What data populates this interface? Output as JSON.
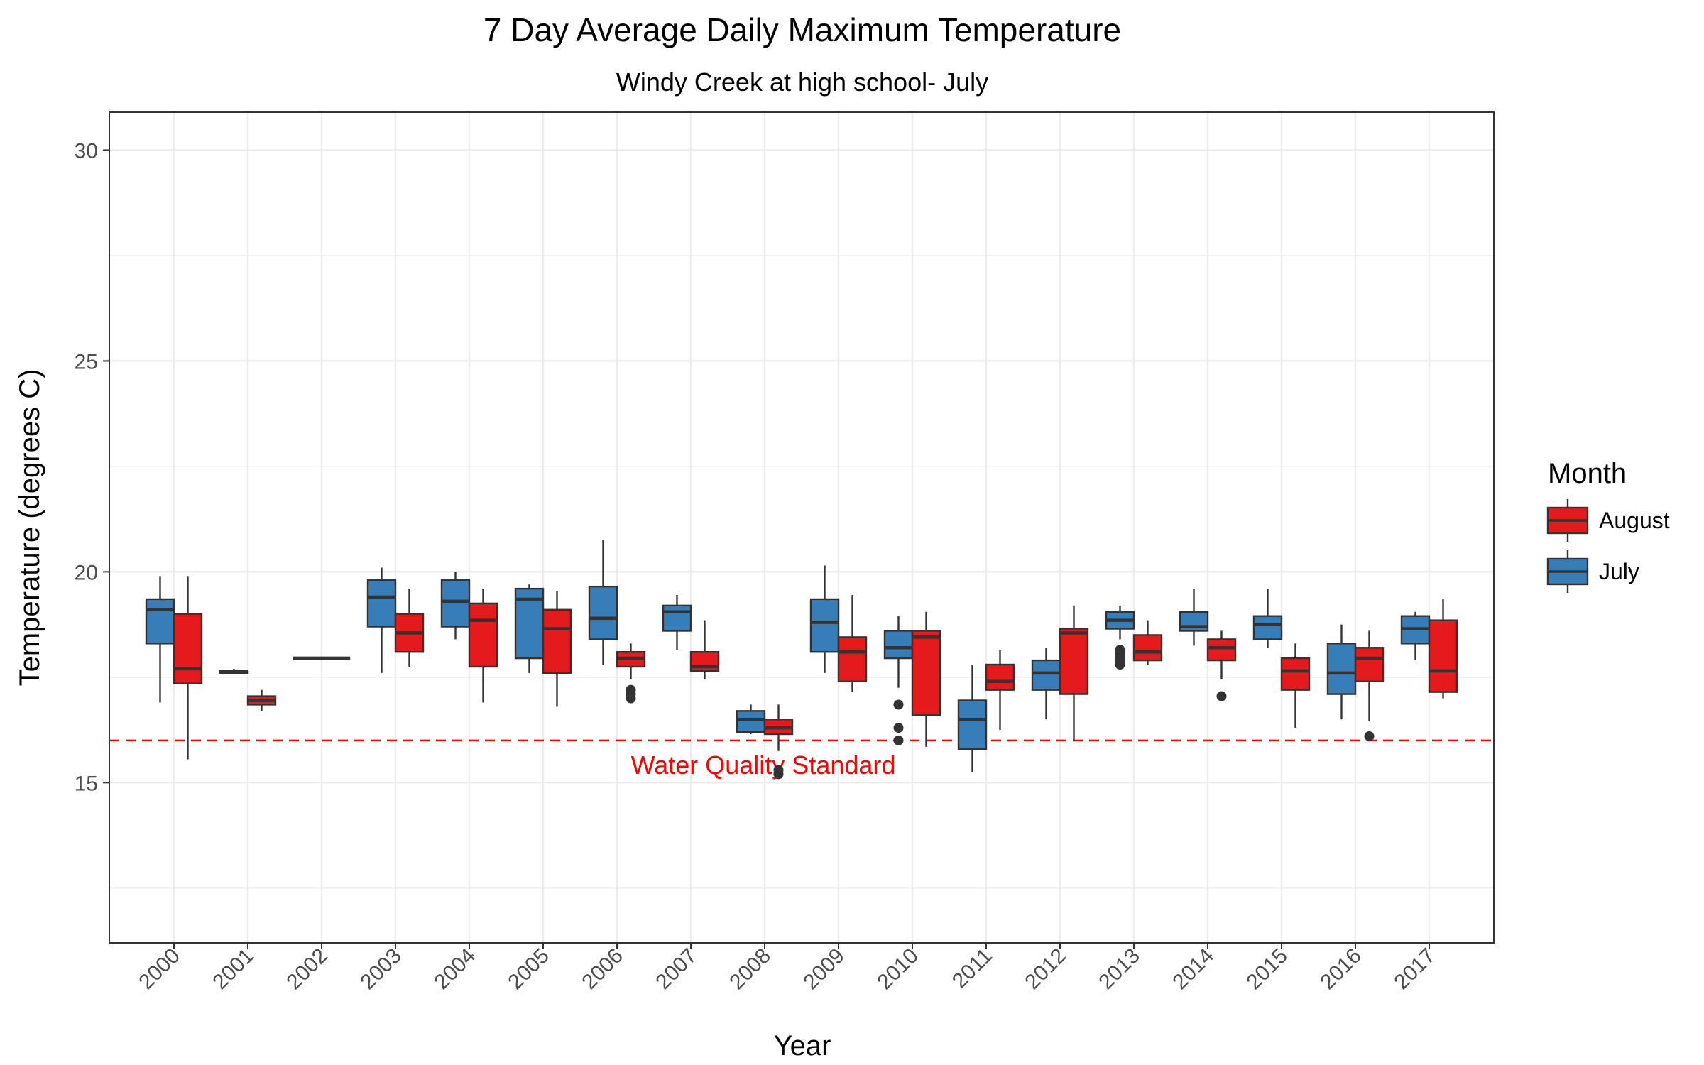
{
  "chart_data": {
    "type": "boxplot",
    "title": "7 Day Average Daily Maximum Temperature",
    "subtitle": "Windy Creek at high school- July",
    "xlabel": "Year",
    "ylabel": "Temperature (degrees C)",
    "ylim": [
      11.2,
      30.9
    ],
    "y_ticks": [
      15,
      20,
      25,
      30
    ],
    "y_tick_labels": [
      "15",
      "20",
      "25",
      "30"
    ],
    "categories": [
      "2000",
      "2001",
      "2002",
      "2003",
      "2004",
      "2005",
      "2006",
      "2007",
      "2008",
      "2009",
      "2010",
      "2011",
      "2012",
      "2013",
      "2014",
      "2015",
      "2016",
      "2017"
    ],
    "grid": true,
    "legend": {
      "title": "Month",
      "position": "right",
      "entries": [
        "August",
        "July"
      ]
    },
    "colors": {
      "July": "#377eb8",
      "August": "#e41a1c",
      "reference_line": "#ff0000",
      "box_stroke": "#333333",
      "grid": "#ebebeb"
    },
    "reference_line": {
      "y": 16.0,
      "label": "Water Quality Standard",
      "style": "dashed"
    },
    "series": [
      {
        "name": "July",
        "boxes": [
          {
            "x": "2000",
            "min": 16.9,
            "q1": 18.3,
            "median": 19.1,
            "q3": 19.35,
            "max": 19.9,
            "outliers": []
          },
          {
            "x": "2001",
            "min": 17.6,
            "q1": 17.6,
            "median": 17.63,
            "q3": 17.66,
            "max": 17.7,
            "outliers": []
          },
          {
            "x": "2002",
            "min": 17.93,
            "q1": 17.93,
            "median": 17.95,
            "q3": 17.97,
            "max": 17.97,
            "outliers": []
          },
          {
            "x": "2003",
            "min": 17.6,
            "q1": 18.7,
            "median": 19.4,
            "q3": 19.8,
            "max": 20.1,
            "outliers": []
          },
          {
            "x": "2004",
            "min": 18.4,
            "q1": 18.7,
            "median": 19.3,
            "q3": 19.8,
            "max": 20.0,
            "outliers": []
          },
          {
            "x": "2005",
            "min": 17.6,
            "q1": 17.95,
            "median": 19.35,
            "q3": 19.6,
            "max": 19.7,
            "outliers": []
          },
          {
            "x": "2006",
            "min": 17.8,
            "q1": 18.4,
            "median": 18.9,
            "q3": 19.65,
            "max": 20.75,
            "outliers": []
          },
          {
            "x": "2007",
            "min": 18.15,
            "q1": 18.6,
            "median": 19.05,
            "q3": 19.2,
            "max": 19.45,
            "outliers": []
          },
          {
            "x": "2008",
            "min": 16.15,
            "q1": 16.2,
            "median": 16.5,
            "q3": 16.7,
            "max": 16.85,
            "outliers": []
          },
          {
            "x": "2009",
            "min": 17.6,
            "q1": 18.1,
            "median": 18.8,
            "q3": 19.35,
            "max": 20.15,
            "outliers": []
          },
          {
            "x": "2010",
            "min": 17.25,
            "q1": 17.95,
            "median": 18.2,
            "q3": 18.6,
            "max": 18.95,
            "outliers": [
              16.85,
              16.3,
              16.0
            ]
          },
          {
            "x": "2011",
            "min": 15.25,
            "q1": 15.8,
            "median": 16.5,
            "q3": 16.95,
            "max": 17.8,
            "outliers": []
          },
          {
            "x": "2012",
            "min": 16.5,
            "q1": 17.2,
            "median": 17.6,
            "q3": 17.9,
            "max": 18.2,
            "outliers": []
          },
          {
            "x": "2013",
            "min": 18.4,
            "q1": 18.65,
            "median": 18.85,
            "q3": 19.05,
            "max": 19.2,
            "outliers": [
              18.15,
              18.05,
              17.95,
              17.85,
              17.8
            ]
          },
          {
            "x": "2014",
            "min": 18.25,
            "q1": 18.6,
            "median": 18.7,
            "q3": 19.05,
            "max": 19.6,
            "outliers": []
          },
          {
            "x": "2015",
            "min": 18.2,
            "q1": 18.4,
            "median": 18.75,
            "q3": 18.95,
            "max": 19.6,
            "outliers": []
          },
          {
            "x": "2016",
            "min": 16.5,
            "q1": 17.1,
            "median": 17.6,
            "q3": 18.3,
            "max": 18.75,
            "outliers": []
          },
          {
            "x": "2017",
            "min": 17.9,
            "q1": 18.3,
            "median": 18.65,
            "q3": 18.95,
            "max": 19.05,
            "outliers": []
          }
        ]
      },
      {
        "name": "August",
        "boxes": [
          {
            "x": "2000",
            "min": 15.55,
            "q1": 17.35,
            "median": 17.7,
            "q3": 19.0,
            "max": 19.9,
            "outliers": []
          },
          {
            "x": "2001",
            "min": 16.7,
            "q1": 16.85,
            "median": 16.95,
            "q3": 17.05,
            "max": 17.2,
            "outliers": []
          },
          {
            "x": "2002",
            "min": 17.93,
            "q1": 17.93,
            "median": 17.95,
            "q3": 17.97,
            "max": 17.97,
            "outliers": []
          },
          {
            "x": "2003",
            "min": 17.75,
            "q1": 18.1,
            "median": 18.55,
            "q3": 19.0,
            "max": 19.6,
            "outliers": []
          },
          {
            "x": "2004",
            "min": 16.9,
            "q1": 17.75,
            "median": 18.85,
            "q3": 19.25,
            "max": 19.6,
            "outliers": []
          },
          {
            "x": "2005",
            "min": 16.8,
            "q1": 17.6,
            "median": 18.65,
            "q3": 19.1,
            "max": 19.55,
            "outliers": []
          },
          {
            "x": "2006",
            "min": 17.45,
            "q1": 17.75,
            "median": 17.95,
            "q3": 18.1,
            "max": 18.3,
            "outliers": [
              17.2,
              17.1,
              17.0
            ]
          },
          {
            "x": "2007",
            "min": 17.45,
            "q1": 17.65,
            "median": 17.75,
            "q3": 18.1,
            "max": 18.85,
            "outliers": []
          },
          {
            "x": "2008",
            "min": 15.75,
            "q1": 16.15,
            "median": 16.3,
            "q3": 16.5,
            "max": 16.85,
            "outliers": [
              15.3,
              15.2
            ]
          },
          {
            "x": "2009",
            "min": 17.15,
            "q1": 17.4,
            "median": 18.1,
            "q3": 18.45,
            "max": 19.45,
            "outliers": []
          },
          {
            "x": "2010",
            "min": 15.85,
            "q1": 16.6,
            "median": 18.45,
            "q3": 18.6,
            "max": 19.05,
            "outliers": []
          },
          {
            "x": "2011",
            "min": 16.25,
            "q1": 17.2,
            "median": 17.4,
            "q3": 17.8,
            "max": 18.15,
            "outliers": []
          },
          {
            "x": "2012",
            "min": 16.0,
            "q1": 17.1,
            "median": 18.55,
            "q3": 18.65,
            "max": 19.2,
            "outliers": []
          },
          {
            "x": "2013",
            "min": 17.8,
            "q1": 17.9,
            "median": 18.1,
            "q3": 18.5,
            "max": 18.85,
            "outliers": []
          },
          {
            "x": "2014",
            "min": 17.45,
            "q1": 17.9,
            "median": 18.2,
            "q3": 18.4,
            "max": 18.6,
            "outliers": [
              17.05
            ]
          },
          {
            "x": "2015",
            "min": 16.3,
            "q1": 17.2,
            "median": 17.65,
            "q3": 17.95,
            "max": 18.3,
            "outliers": []
          },
          {
            "x": "2016",
            "min": 16.45,
            "q1": 17.4,
            "median": 17.95,
            "q3": 18.2,
            "max": 18.6,
            "outliers": [
              16.1
            ]
          },
          {
            "x": "2017",
            "min": 17.0,
            "q1": 17.15,
            "median": 17.65,
            "q3": 18.85,
            "max": 19.35,
            "outliers": []
          }
        ]
      }
    ]
  }
}
